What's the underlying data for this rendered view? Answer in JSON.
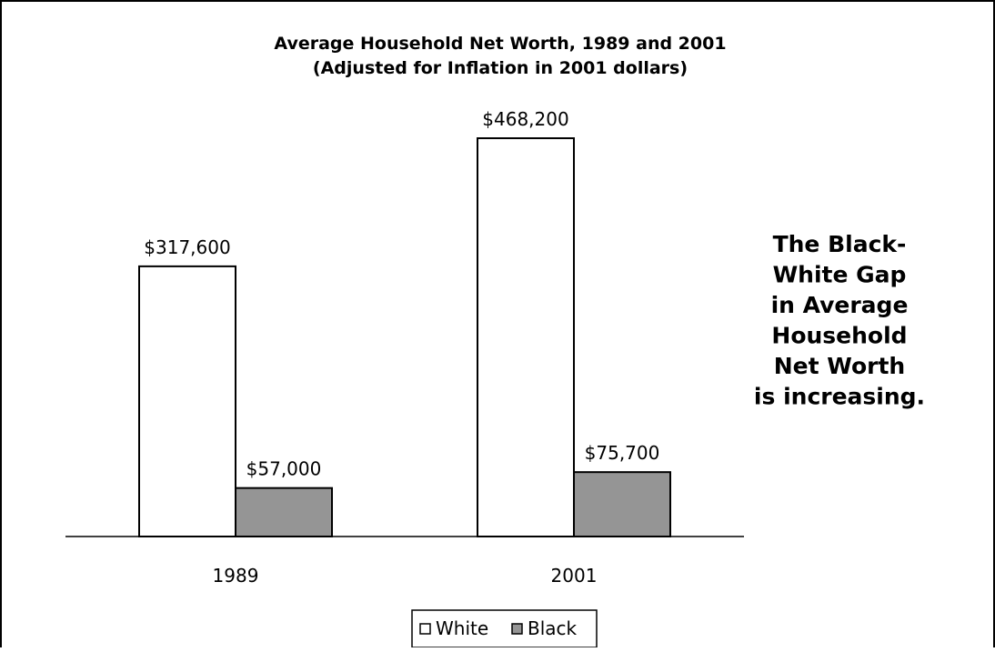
{
  "chart_data": {
    "type": "bar",
    "title": "Average Household Net Worth, 1989 and 2001",
    "subtitle": "(Adjusted for Inflation in 2001 dollars)",
    "categories": [
      "1989",
      "2001"
    ],
    "series": [
      {
        "name": "White",
        "color": "#ffffff",
        "values": [
          317600,
          468200
        ],
        "labels": [
          "$317,600",
          "$468,200"
        ]
      },
      {
        "name": "Black",
        "color": "#959595",
        "values": [
          57000,
          75700
        ],
        "labels": [
          "$57,000",
          "$75,700"
        ]
      }
    ],
    "ylim": [
      0,
      500000
    ],
    "grid": false,
    "legend_position": "bottom",
    "annotation": [
      "The Black-",
      "White Gap",
      "in Average",
      "Household",
      "Net Worth",
      "is increasing."
    ]
  }
}
